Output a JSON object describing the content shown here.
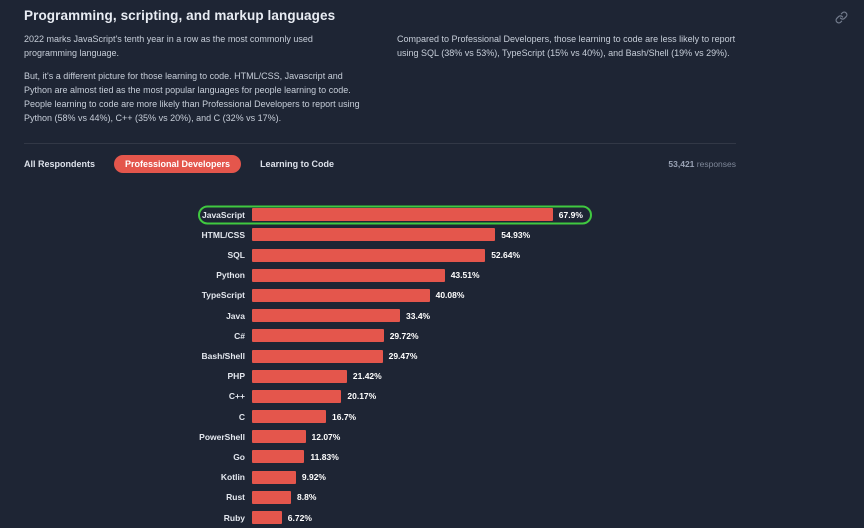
{
  "header": {
    "title": "Programming, scripting, and markup languages",
    "icon": "link-icon"
  },
  "description": {
    "left": [
      "2022 marks JavaScript's tenth year in a row as the most commonly used programming language.",
      "But, it's a different picture for those learning to code. HTML/CSS, Javascript and Python are almost tied as the most popular languages for people learning to code. People learning to code are more likely than Professional Developers to report using Python (58% vs 44%), C++ (35% vs 20%), and C (32% vs 17%)."
    ],
    "right": [
      "Compared to Professional Developers, those learning to code are less likely to report using SQL (38% vs 53%), TypeScript (15% vs 40%), and Bash/Shell (19% vs 29%)."
    ]
  },
  "tabs": [
    {
      "label": "All Respondents",
      "active": false
    },
    {
      "label": "Professional Developers",
      "active": true
    },
    {
      "label": "Learning to Code",
      "active": false
    }
  ],
  "responses": {
    "count": "53,421",
    "label": "responses"
  },
  "chart_data": {
    "type": "bar",
    "orientation": "horizontal",
    "title": "Programming, scripting, and markup languages",
    "categories": [
      "JavaScript",
      "HTML/CSS",
      "SQL",
      "Python",
      "TypeScript",
      "Java",
      "C#",
      "Bash/Shell",
      "PHP",
      "C++",
      "C",
      "PowerShell",
      "Go",
      "Kotlin",
      "Rust",
      "Ruby"
    ],
    "values": [
      67.9,
      54.93,
      52.64,
      43.51,
      40.08,
      33.4,
      29.72,
      29.47,
      21.42,
      20.17,
      16.7,
      12.07,
      11.83,
      9.92,
      8.8,
      6.72
    ],
    "value_labels": [
      "67.9%",
      "54.93%",
      "52.64%",
      "43.51%",
      "40.08%",
      "33.4%",
      "29.72%",
      "29.47%",
      "21.42%",
      "20.17%",
      "16.7%",
      "12.07%",
      "11.83%",
      "9.92%",
      "8.8%",
      "6.72%"
    ],
    "highlighted_category": "JavaScript",
    "xlim": [
      0,
      70
    ],
    "grid": false,
    "legend": false
  },
  "colors": {
    "background": "#1e2534",
    "accent": "#e4564c",
    "highlight": "#40c940"
  }
}
